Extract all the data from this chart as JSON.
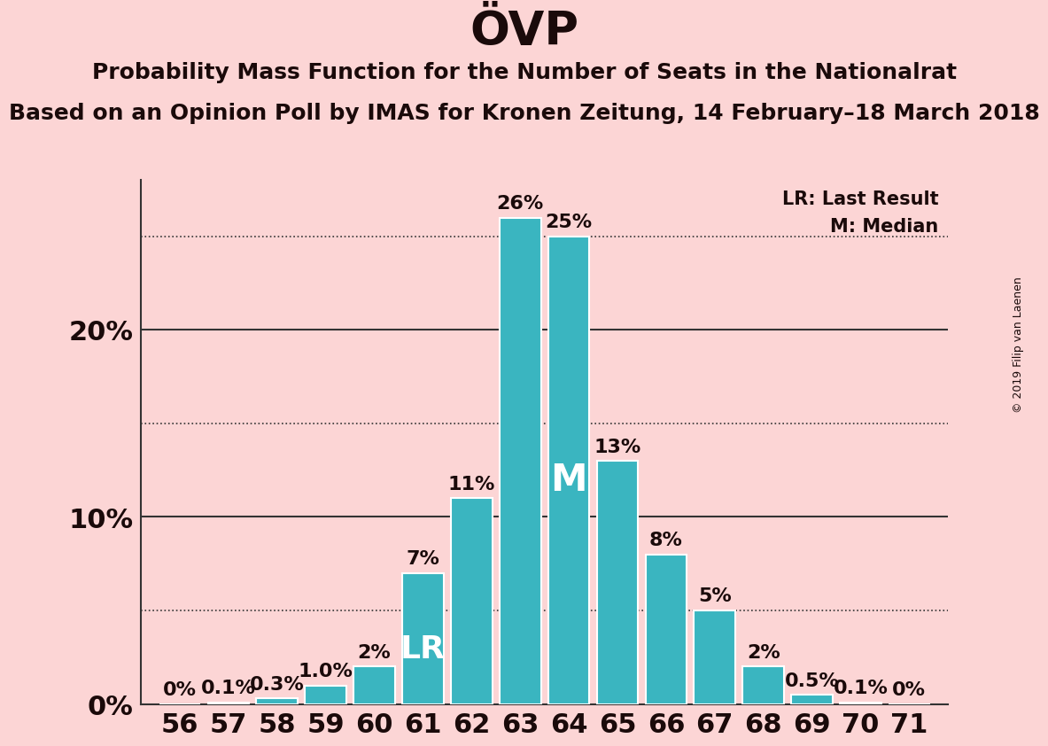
{
  "title": "ÖVP",
  "subtitle1": "Probability Mass Function for the Number of Seats in the Nationalrat",
  "subtitle2": "Based on an Opinion Poll by IMAS for Kronen Zeitung, 14 February–18 March 2018",
  "copyright": "© 2019 Filip van Laenen",
  "seats": [
    56,
    57,
    58,
    59,
    60,
    61,
    62,
    63,
    64,
    65,
    66,
    67,
    68,
    69,
    70,
    71
  ],
  "probabilities": [
    0.0,
    0.1,
    0.3,
    1.0,
    2.0,
    7.0,
    11.0,
    26.0,
    25.0,
    13.0,
    8.0,
    5.0,
    2.0,
    0.5,
    0.1,
    0.0
  ],
  "bar_color": "#3ab5c0",
  "background_color": "#fcd5d5",
  "bar_labels": [
    "0%",
    "0.1%",
    "0.3%",
    "1.0%",
    "2%",
    "7%",
    "11%",
    "26%",
    "25%",
    "13%",
    "8%",
    "5%",
    "2%",
    "0.5%",
    "0.1%",
    "0%"
  ],
  "lr_seat": 61,
  "median_seat": 64,
  "solid_line_levels": [
    10.0,
    20.0
  ],
  "dotted_line_levels": [
    5.0,
    15.0,
    25.0
  ],
  "ylim": [
    0,
    28
  ],
  "title_fontsize": 38,
  "subtitle_fontsize": 18,
  "bar_label_fontsize": 16,
  "axis_label_fontsize": 22,
  "xtick_fontsize": 22,
  "lr_fontsize": 26,
  "m_fontsize": 30,
  "legend_fontsize": 15,
  "copyright_fontsize": 9
}
